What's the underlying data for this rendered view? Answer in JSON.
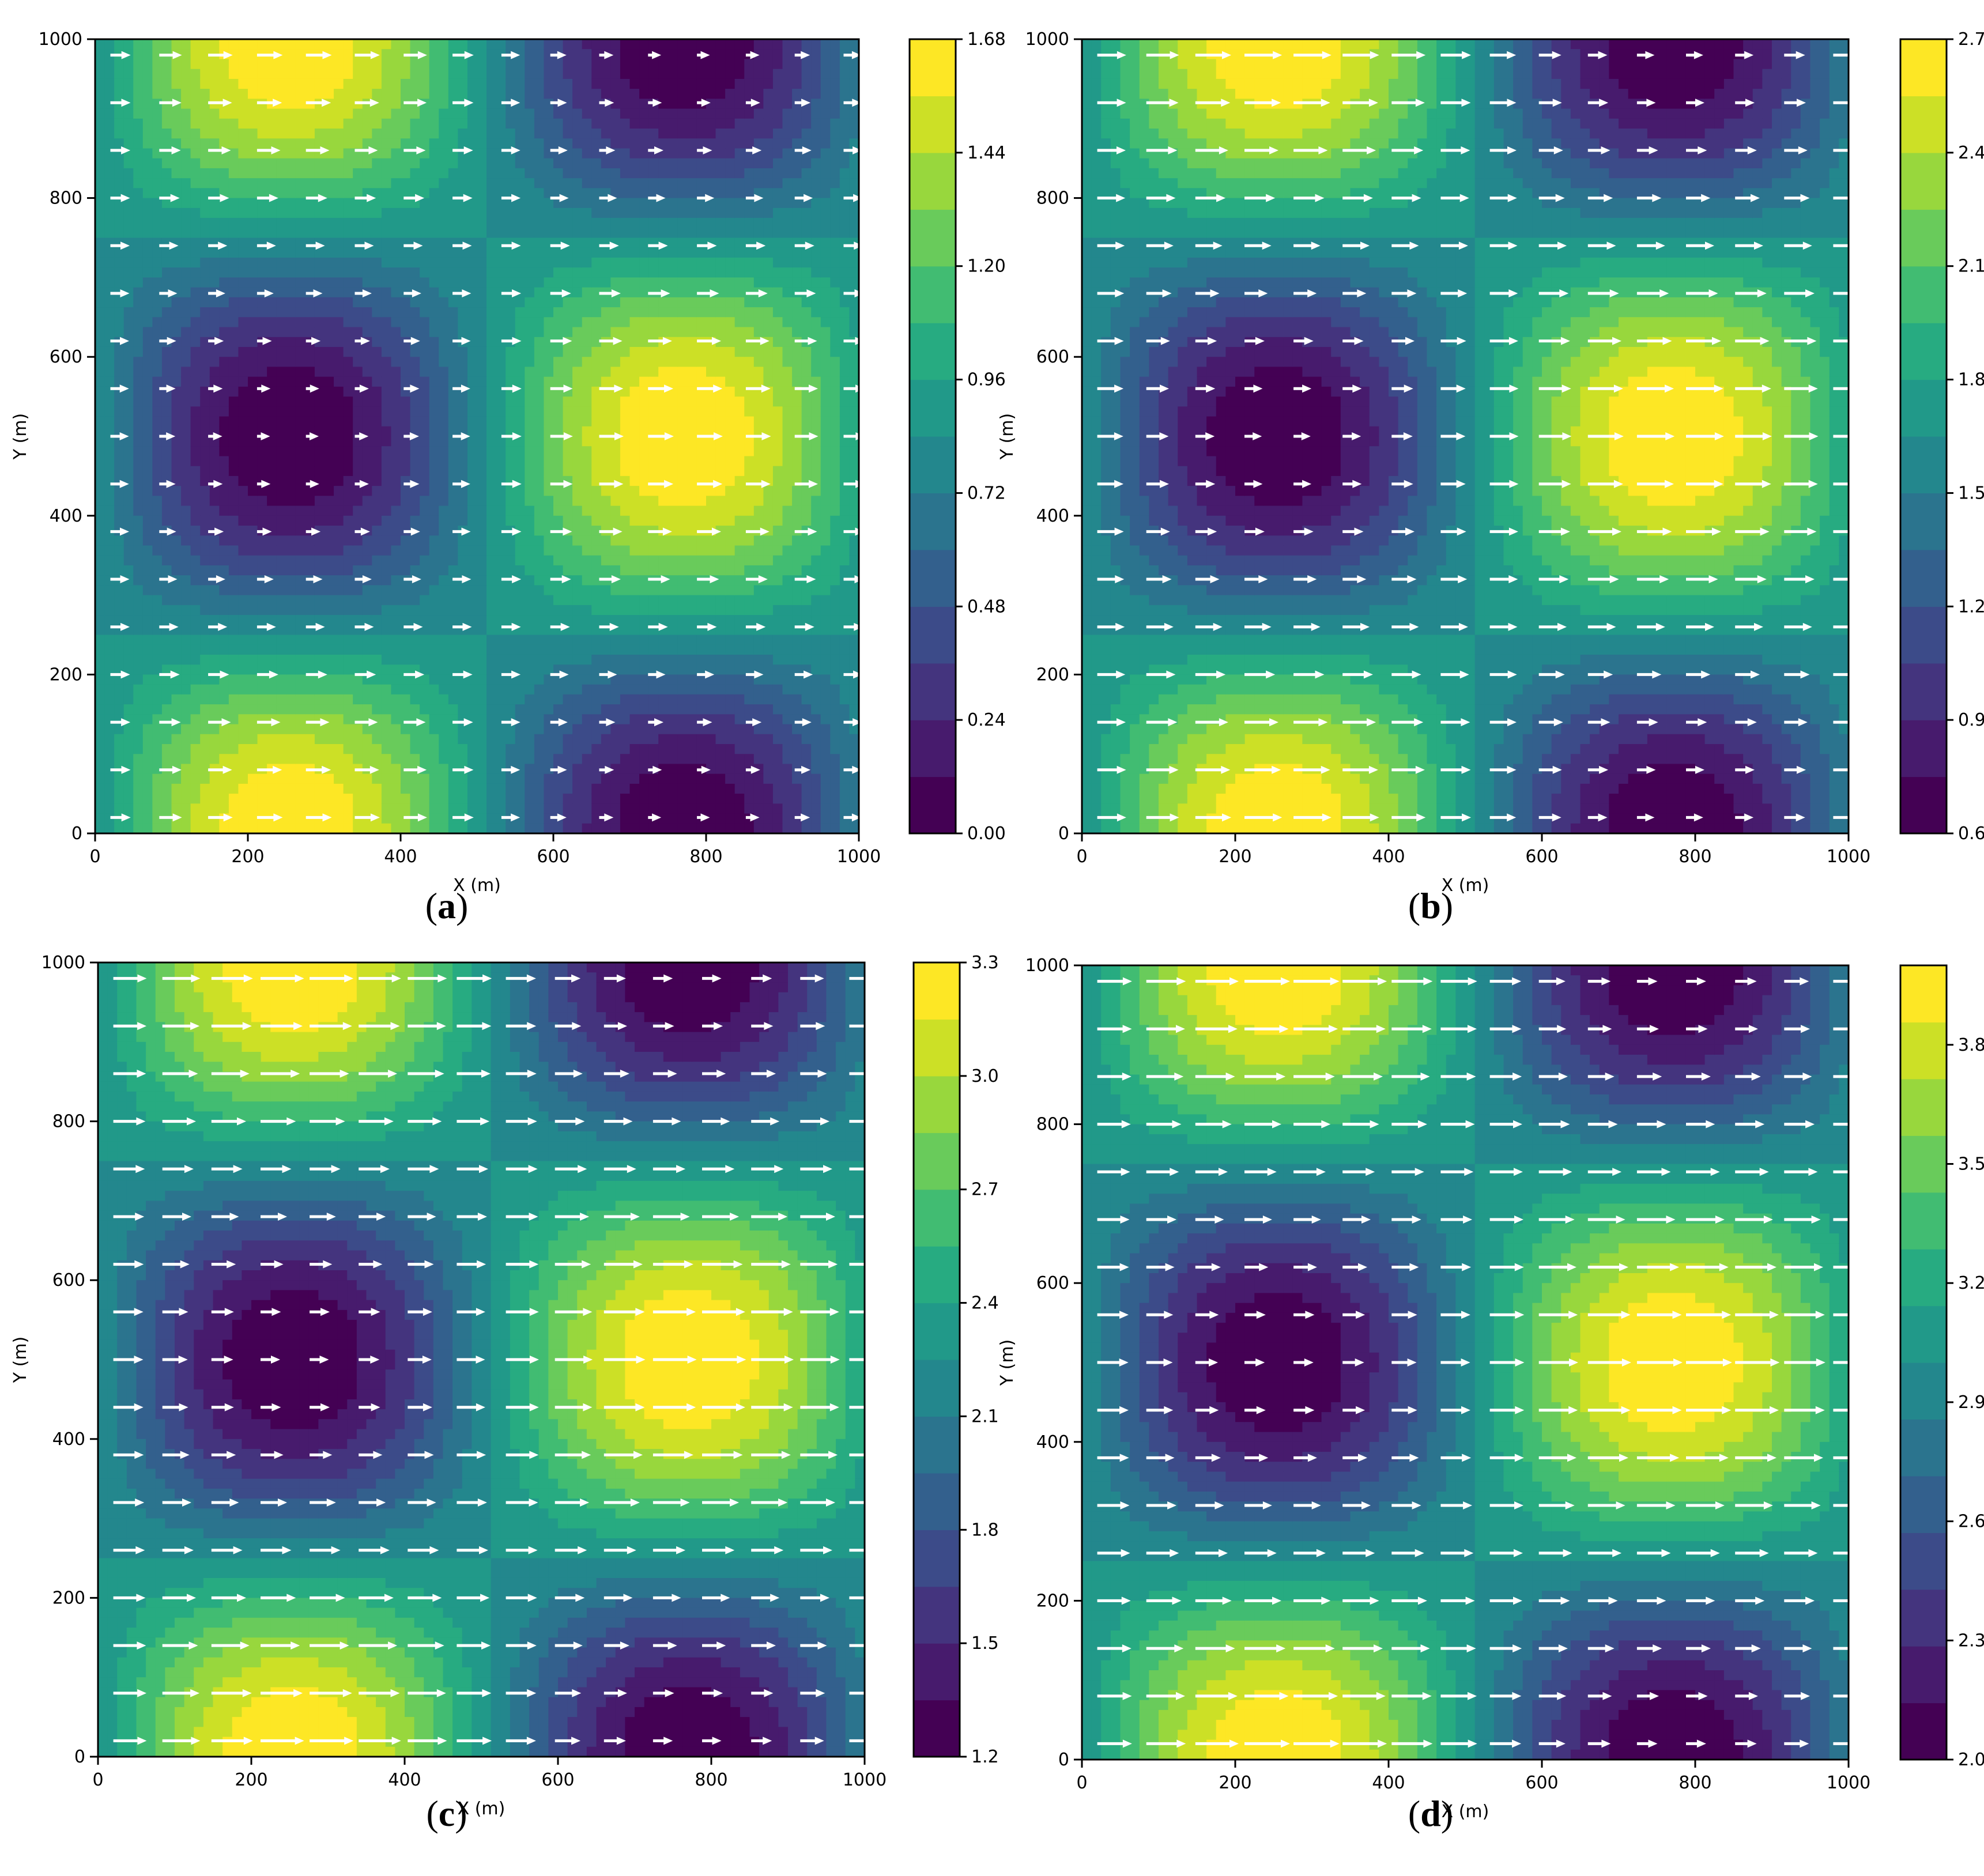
{
  "figure": {
    "panels": [
      {
        "id": "a",
        "caption_letter": "a"
      },
      {
        "id": "b",
        "caption_letter": "b"
      },
      {
        "id": "c",
        "caption_letter": "c"
      },
      {
        "id": "d",
        "caption_letter": "d"
      }
    ]
  },
  "chart_data": [
    {
      "panel": "a",
      "type": "heatmap",
      "subtype": "filled-contour-with-quiver",
      "xlabel": "X (m)",
      "ylabel": "Y (m)",
      "xlim": [
        0,
        1000
      ],
      "ylim": [
        0,
        1000
      ],
      "xticks": [
        "0",
        "200",
        "400",
        "600",
        "800",
        "1000"
      ],
      "yticks": [
        "0",
        "200",
        "400",
        "600",
        "800",
        "1000"
      ],
      "colormap": "viridis",
      "colorbar": {
        "min": 0.0,
        "max": 1.68,
        "ticks": [
          "0.00",
          "0.24",
          "0.48",
          "0.72",
          "0.96",
          "1.20",
          "1.44",
          "1.68"
        ]
      },
      "field_extrema": [
        {
          "x": 250,
          "y": 0,
          "value": 1.68
        },
        {
          "x": 250,
          "y": 1000,
          "value": 1.68
        },
        {
          "x": 770,
          "y": 500,
          "value": 1.68
        },
        {
          "x": 250,
          "y": 500,
          "value": 0.05
        },
        {
          "x": 770,
          "y": 0,
          "value": 0.05
        },
        {
          "x": 770,
          "y": 1000,
          "value": 0.05
        }
      ],
      "quiver": {
        "direction": "+x",
        "max_length": 0.5
      }
    },
    {
      "panel": "b",
      "type": "heatmap",
      "subtype": "filled-contour-with-quiver",
      "xlabel": "X (m)",
      "ylabel": "Y (m)",
      "xlim": [
        0,
        1000
      ],
      "ylim": [
        0,
        1000
      ],
      "xticks": [
        "0",
        "200",
        "400",
        "600",
        "800",
        "1000"
      ],
      "yticks": [
        "0",
        "200",
        "400",
        "600",
        "800",
        "1000"
      ],
      "colormap": "viridis",
      "colorbar": {
        "min": 0.6,
        "max": 2.7,
        "ticks": [
          "0.6",
          "0.9",
          "1.2",
          "1.5",
          "1.8",
          "2.1",
          "2.4",
          "2.7"
        ]
      },
      "field_extrema": [
        {
          "x": 250,
          "y": 0,
          "value": 2.7
        },
        {
          "x": 250,
          "y": 1000,
          "value": 2.7
        },
        {
          "x": 770,
          "y": 500,
          "value": 2.7
        },
        {
          "x": 250,
          "y": 500,
          "value": 0.6
        },
        {
          "x": 770,
          "y": 0,
          "value": 0.6
        },
        {
          "x": 770,
          "y": 1000,
          "value": 0.6
        }
      ],
      "quiver": {
        "direction": "+x",
        "max_length": 0.8
      }
    },
    {
      "panel": "c",
      "type": "heatmap",
      "subtype": "filled-contour-with-quiver",
      "xlabel": "X (m)",
      "ylabel": "Y (m)",
      "xlim": [
        0,
        1000
      ],
      "ylim": [
        0,
        1000
      ],
      "xticks": [
        "0",
        "200",
        "400",
        "600",
        "800",
        "1000"
      ],
      "yticks": [
        "0",
        "200",
        "400",
        "600",
        "800",
        "1000"
      ],
      "colormap": "viridis",
      "colorbar": {
        "min": 1.2,
        "max": 3.3,
        "ticks": [
          "1.2",
          "1.5",
          "1.8",
          "2.1",
          "2.4",
          "2.7",
          "3.0",
          "3.3"
        ]
      },
      "field_extrema": [
        {
          "x": 250,
          "y": 0,
          "value": 3.3
        },
        {
          "x": 250,
          "y": 1000,
          "value": 3.3
        },
        {
          "x": 770,
          "y": 500,
          "value": 3.3
        },
        {
          "x": 250,
          "y": 500,
          "value": 1.2
        },
        {
          "x": 770,
          "y": 0,
          "value": 1.2
        },
        {
          "x": 770,
          "y": 1000,
          "value": 1.2
        }
      ],
      "quiver": {
        "direction": "+x",
        "max_length": 0.95
      }
    },
    {
      "panel": "d",
      "type": "heatmap",
      "subtype": "filled-contour-with-quiver",
      "xlabel": "X (m)",
      "ylabel": "Y (m)",
      "xlim": [
        0,
        1000
      ],
      "ylim": [
        0,
        1000
      ],
      "xticks": [
        "0",
        "200",
        "400",
        "600",
        "800",
        "1000"
      ],
      "yticks": [
        "0",
        "200",
        "400",
        "600",
        "800",
        "1000"
      ],
      "colormap": "viridis",
      "colorbar": {
        "min": 2.0,
        "max": 4.0,
        "ticks": [
          "2.0",
          "2.3",
          "2.6",
          "2.9",
          "3.2",
          "3.5",
          "3.8"
        ],
        "tick_values": [
          2.0,
          2.3,
          2.6,
          2.9,
          3.2,
          3.5,
          3.8
        ]
      },
      "field_extrema": [
        {
          "x": 250,
          "y": 0,
          "value": 4.0
        },
        {
          "x": 250,
          "y": 1000,
          "value": 4.0
        },
        {
          "x": 770,
          "y": 500,
          "value": 4.0
        },
        {
          "x": 250,
          "y": 500,
          "value": 2.0
        },
        {
          "x": 770,
          "y": 0,
          "value": 2.0
        },
        {
          "x": 770,
          "y": 1000,
          "value": 2.0
        }
      ],
      "quiver": {
        "direction": "+x",
        "max_length": 1.0
      }
    }
  ]
}
